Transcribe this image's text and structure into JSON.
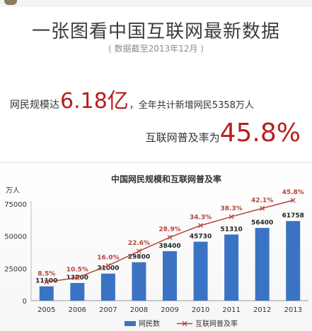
{
  "header": {
    "title": "一张图看中国互联网最新数据",
    "subtitle": "( 数据截至2013年12月 )"
  },
  "stats": {
    "line1_prefix": "网民规模达",
    "users_value": "6.18亿",
    "line1_suffix": "，全年共计新增网民5358万人",
    "line2_prefix": "互联网普及率为",
    "rate_value": "45.8%"
  },
  "colors": {
    "bar": "#3b73c4",
    "line": "#b5443a",
    "highlight": "#b51f1f"
  },
  "chart_data": {
    "type": "bar",
    "title": "中国网民规模和互联网普及率",
    "ylabel": "万人",
    "categories": [
      "2005",
      "2006",
      "2007",
      "2008",
      "2009",
      "2010",
      "2011",
      "2012",
      "2013"
    ],
    "ylim": [
      0,
      75000
    ],
    "yticks": [
      0,
      25000,
      50000,
      75000
    ],
    "series": [
      {
        "name": "网民数",
        "type": "bar",
        "values": [
          11100,
          13700,
          21000,
          29800,
          38400,
          45730,
          51310,
          56400,
          61758
        ],
        "labels": [
          "11100",
          "13700",
          "21000",
          "29800",
          "38400",
          "45730",
          "51310",
          "56400",
          "61758"
        ]
      },
      {
        "name": "互联网普及率",
        "type": "line",
        "values": [
          8.5,
          10.5,
          16.0,
          22.6,
          28.9,
          34.3,
          38.3,
          42.1,
          45.8
        ],
        "labels": [
          "8.5%",
          "10.5%",
          "16.0%",
          "22.6%",
          "28.9%",
          "34.3%",
          "38.3%",
          "42.1%",
          "45.8%"
        ]
      }
    ],
    "legend": "bottom",
    "grid": false
  }
}
